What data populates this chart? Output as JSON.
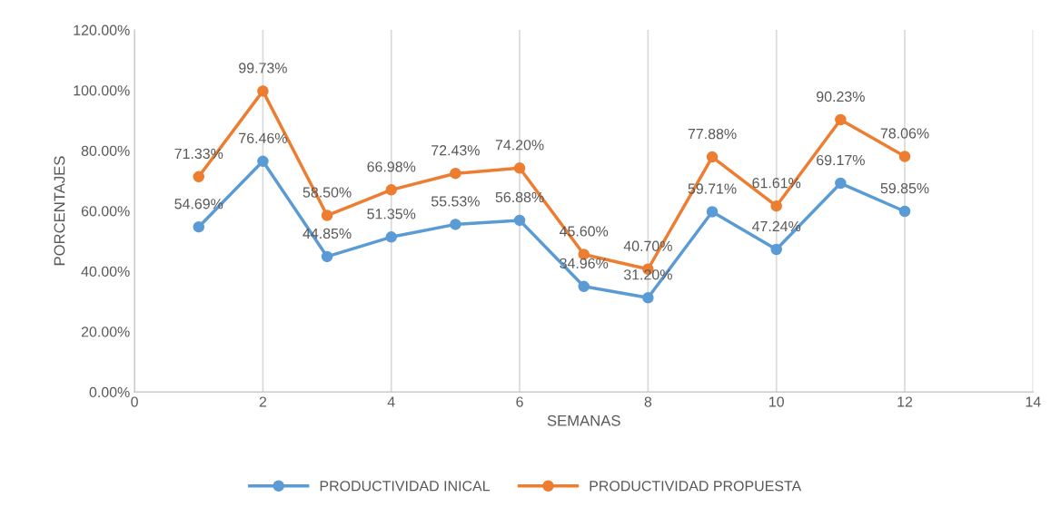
{
  "chart_data": {
    "type": "line",
    "xlabel": "SEMANAS",
    "ylabel": "PORCENTAJES",
    "x": [
      1,
      2,
      3,
      4,
      5,
      6,
      7,
      8,
      9,
      10,
      11,
      12
    ],
    "series": [
      {
        "name": "PRODUCTIVIDAD INICAL",
        "color": "#5b9bd5",
        "values": [
          54.69,
          76.46,
          44.85,
          51.35,
          55.53,
          56.88,
          34.96,
          31.2,
          59.71,
          47.24,
          69.17,
          59.85
        ],
        "value_labels": [
          "54.69%",
          "76.46%",
          "44.85%",
          "51.35%",
          "55.53%",
          "56.88%",
          "34.96%",
          "31.20%",
          "59.71%",
          "47.24%",
          "69.17%",
          "59.85%"
        ]
      },
      {
        "name": "PRODUCTIVIDAD PROPUESTA",
        "color": "#ed7d31",
        "values": [
          71.33,
          99.73,
          58.5,
          66.98,
          72.43,
          74.2,
          45.6,
          40.7,
          77.88,
          61.61,
          90.23,
          78.06
        ],
        "value_labels": [
          "71.33%",
          "99.73%",
          "58.50%",
          "66.98%",
          "72.43%",
          "74.20%",
          "45.60%",
          "40.70%",
          "77.88%",
          "61.61%",
          "90.23%",
          "78.06%"
        ]
      }
    ],
    "xlim": [
      0,
      14
    ],
    "xticks": [
      0,
      2,
      4,
      6,
      8,
      10,
      12,
      14
    ],
    "ylim": [
      0,
      120
    ],
    "yticks": [
      {
        "value": 0,
        "label": "0.00%"
      },
      {
        "value": 20,
        "label": "20.00%"
      },
      {
        "value": 40,
        "label": "40.00%"
      },
      {
        "value": 60,
        "label": "60.00%"
      },
      {
        "value": 80,
        "label": "80.00%"
      },
      {
        "value": 100,
        "label": "100.00%"
      },
      {
        "value": 120,
        "label": "120.00%"
      }
    ],
    "grid": "x",
    "legend": "bottom",
    "marker": "circle",
    "line_style": "solid"
  }
}
